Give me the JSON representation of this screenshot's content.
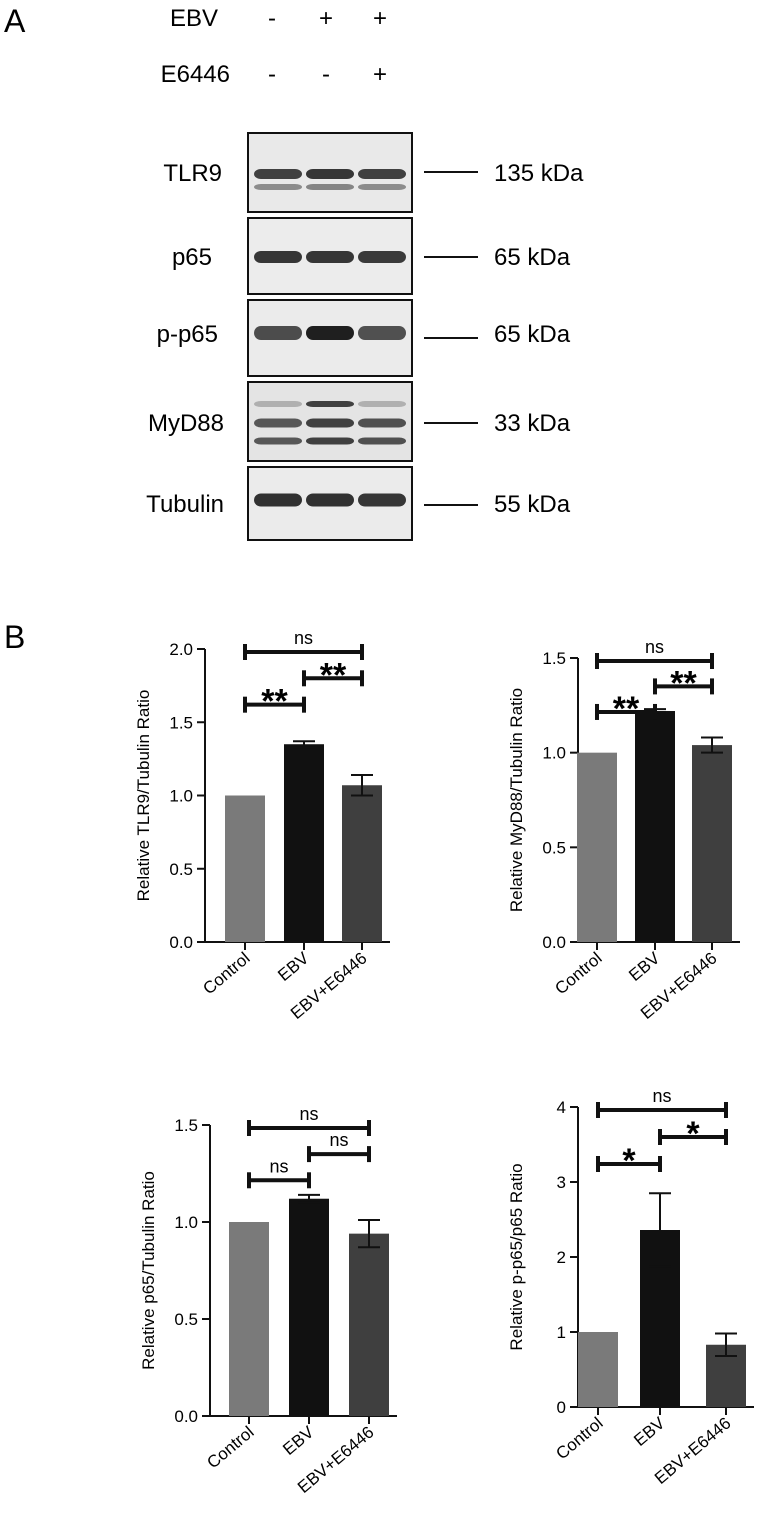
{
  "panels": {
    "a_label": "A",
    "b_label": "B"
  },
  "western": {
    "conditions": [
      {
        "name": "EBV",
        "values": [
          "-",
          "+",
          "+"
        ]
      },
      {
        "name": "E6446",
        "values": [
          "-",
          "-",
          "+"
        ]
      }
    ],
    "blots": [
      {
        "protein": "TLR9",
        "size": "135 kDa",
        "intensity": [
          0.85,
          0.9,
          0.85
        ],
        "bands": 2
      },
      {
        "protein": "p65",
        "size": "65 kDa",
        "intensity": [
          0.9,
          0.9,
          0.88
        ],
        "bands": 1
      },
      {
        "protein": "p-p65",
        "size": "65 kDa",
        "intensity": [
          0.8,
          1.0,
          0.78
        ],
        "bands": 1
      },
      {
        "protein": "MyD88",
        "size": "33 kDa",
        "intensity": [
          0.75,
          0.85,
          0.78
        ],
        "bands": 3
      },
      {
        "protein": "Tubulin",
        "size": "55 kDa",
        "intensity": [
          0.92,
          0.92,
          0.9
        ],
        "bands": 1
      }
    ]
  },
  "colors": {
    "control": "#7a7a7a",
    "ebv": "#111111",
    "ebv_e6446": "#3f3f3f",
    "axis": "#111111"
  },
  "chart_data": [
    {
      "type": "bar",
      "categories": [
        "Control",
        "EBV",
        "EBV+E6446"
      ],
      "values": [
        1.0,
        1.35,
        1.07
      ],
      "errors": [
        0,
        0.02,
        0.07
      ],
      "ylabel": "Relative TLR9/Tubulin Ratio",
      "ylim": [
        0,
        2.0
      ],
      "ticks": [
        "0.0",
        "0.5",
        "1.0",
        "1.5",
        "2.0"
      ],
      "significance": [
        {
          "from": 1,
          "to": 2,
          "label": "**",
          "level": 0
        },
        {
          "from": 2,
          "to": 3,
          "label": "**",
          "level": 1
        },
        {
          "from": 1,
          "to": 3,
          "label": "ns",
          "level": 2
        }
      ]
    },
    {
      "type": "bar",
      "categories": [
        "Control",
        "EBV",
        "EBV+E6446"
      ],
      "values": [
        1.0,
        1.22,
        1.04
      ],
      "errors": [
        0,
        0.01,
        0.04
      ],
      "ylabel": "Relative MyD88/Tubulin Ratio",
      "ylim": [
        0,
        1.5
      ],
      "ticks": [
        "0.0",
        "0.5",
        "1.0",
        "1.5"
      ],
      "significance": [
        {
          "from": 1,
          "to": 2,
          "label": "**",
          "level": 0
        },
        {
          "from": 2,
          "to": 3,
          "label": "**",
          "level": 1
        },
        {
          "from": 1,
          "to": 3,
          "label": "ns",
          "level": 2
        }
      ]
    },
    {
      "type": "bar",
      "categories": [
        "Control",
        "EBV",
        "EBV+E6446"
      ],
      "values": [
        1.0,
        1.12,
        0.94
      ],
      "errors": [
        0,
        0.02,
        0.07
      ],
      "ylabel": "Relative p65/Tubulin Ratio",
      "ylim": [
        0,
        1.5
      ],
      "ticks": [
        "0.0",
        "0.5",
        "1.0",
        "1.5"
      ],
      "significance": [
        {
          "from": 1,
          "to": 2,
          "label": "ns",
          "level": 0
        },
        {
          "from": 2,
          "to": 3,
          "label": "ns",
          "level": 1
        },
        {
          "from": 1,
          "to": 3,
          "label": "ns",
          "level": 2
        }
      ]
    },
    {
      "type": "bar",
      "categories": [
        "Control",
        "EBV",
        "EBV+E6446"
      ],
      "values": [
        1.0,
        2.36,
        0.83
      ],
      "errors": [
        0,
        0.49,
        0.15
      ],
      "ylabel": "Relative p-p65/p65 Ratio",
      "ylim": [
        0,
        4
      ],
      "ticks": [
        "0",
        "1",
        "2",
        "3",
        "4"
      ],
      "significance": [
        {
          "from": 1,
          "to": 2,
          "label": "*",
          "level": 0
        },
        {
          "from": 2,
          "to": 3,
          "label": "*",
          "level": 1
        },
        {
          "from": 1,
          "to": 3,
          "label": "ns",
          "level": 2
        }
      ]
    }
  ]
}
